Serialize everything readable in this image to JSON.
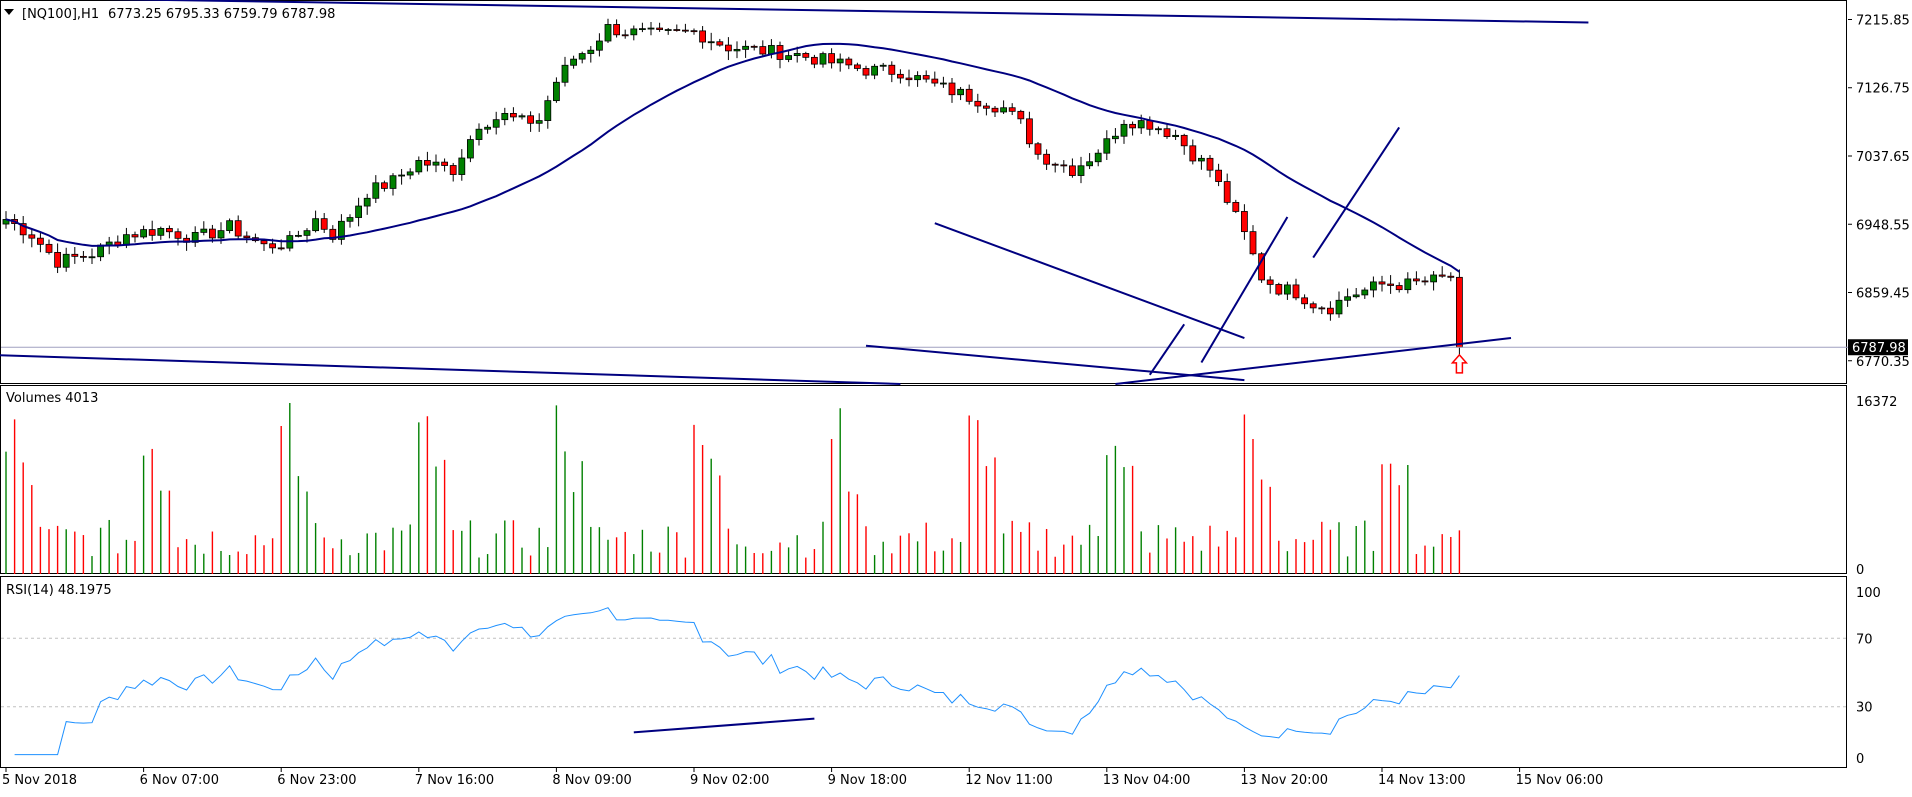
{
  "header": {
    "symbol": "[NQ100],H1",
    "ohlc": "6773.25 6795.33 6759.79 6787.98"
  },
  "colors": {
    "bull": "#008000",
    "bear": "#ff0000",
    "drawing": "#000080",
    "rsi_line": "#1e90ff",
    "price_label_bg": "#000000",
    "grid_dashed": "#c0c0c0"
  },
  "chart_data": [
    {
      "type": "candlestick",
      "title": "",
      "xlabel": "",
      "ylabel": "",
      "ylim": [
        6740,
        7240
      ],
      "y_ticks": [
        "7215.85",
        "7126.75",
        "7037.65",
        "6948.55",
        "6859.45",
        "6770.35"
      ],
      "current_price_label": "6787.98",
      "current_price": 6787.98,
      "bar_count": 170,
      "anchors": [
        [
          0,
          6955
        ],
        [
          3,
          6935
        ],
        [
          6,
          6900
        ],
        [
          10,
          6910
        ],
        [
          14,
          6935
        ],
        [
          18,
          6942
        ],
        [
          22,
          6930
        ],
        [
          26,
          6945
        ],
        [
          30,
          6920
        ],
        [
          33,
          6925
        ],
        [
          36,
          6955
        ],
        [
          38,
          6935
        ],
        [
          40,
          6960
        ],
        [
          42,
          6990
        ],
        [
          45,
          7005
        ],
        [
          48,
          7030
        ],
        [
          52,
          7020
        ],
        [
          55,
          7080
        ],
        [
          58,
          7090
        ],
        [
          60,
          7082
        ],
        [
          62,
          7085
        ],
        [
          64,
          7135
        ],
        [
          66,
          7165
        ],
        [
          68,
          7180
        ],
        [
          70,
          7205
        ],
        [
          72,
          7200
        ],
        [
          76,
          7195
        ],
        [
          80,
          7200
        ],
        [
          84,
          7180
        ],
        [
          88,
          7175
        ],
        [
          92,
          7170
        ],
        [
          96,
          7160
        ],
        [
          100,
          7150
        ],
        [
          104,
          7148
        ],
        [
          108,
          7130
        ],
        [
          112,
          7115
        ],
        [
          116,
          7100
        ],
        [
          118,
          7080
        ],
        [
          120,
          7040
        ],
        [
          122,
          7030
        ],
        [
          124,
          7020
        ],
        [
          126,
          7035
        ],
        [
          128,
          7055
        ],
        [
          130,
          7085
        ],
        [
          133,
          7080
        ],
        [
          136,
          7065
        ],
        [
          138,
          7040
        ],
        [
          140,
          7020
        ],
        [
          142,
          6980
        ],
        [
          144,
          6935
        ],
        [
          146,
          6880
        ],
        [
          148,
          6865
        ],
        [
          150,
          6860
        ],
        [
          152,
          6845
        ],
        [
          154,
          6840
        ],
        [
          156,
          6855
        ],
        [
          158,
          6862
        ],
        [
          160,
          6870
        ],
        [
          163,
          6870
        ],
        [
          166,
          6875
        ],
        [
          168,
          6880
        ],
        [
          170,
          6860
        ]
      ],
      "series_note_hidden": ""
    },
    {
      "type": "bar",
      "title": "Volumes 4013",
      "y_ticks": [
        "16372",
        "0"
      ],
      "ylim": [
        0,
        16372
      ],
      "last_value": 4013
    },
    {
      "type": "line",
      "title": "RSI(14) 48.1975",
      "y_ticks": [
        "100",
        "70",
        "30",
        "0"
      ],
      "ylim": [
        0,
        100
      ],
      "levels": [
        70,
        30
      ],
      "last_value": 48.1975
    }
  ],
  "x_axis": {
    "labels": [
      "5 Nov 2018",
      "6 Nov 07:00",
      "6 Nov 23:00",
      "7 Nov 16:00",
      "8 Nov 09:00",
      "9 Nov 02:00",
      "9 Nov 18:00",
      "12 Nov 11:00",
      "13 Nov 04:00",
      "13 Nov 20:00",
      "14 Nov 13:00",
      "15 Nov 06:00"
    ],
    "label_bar_index": [
      0,
      16,
      32,
      48,
      64,
      80,
      96,
      112,
      128,
      144,
      160,
      176
    ]
  }
}
